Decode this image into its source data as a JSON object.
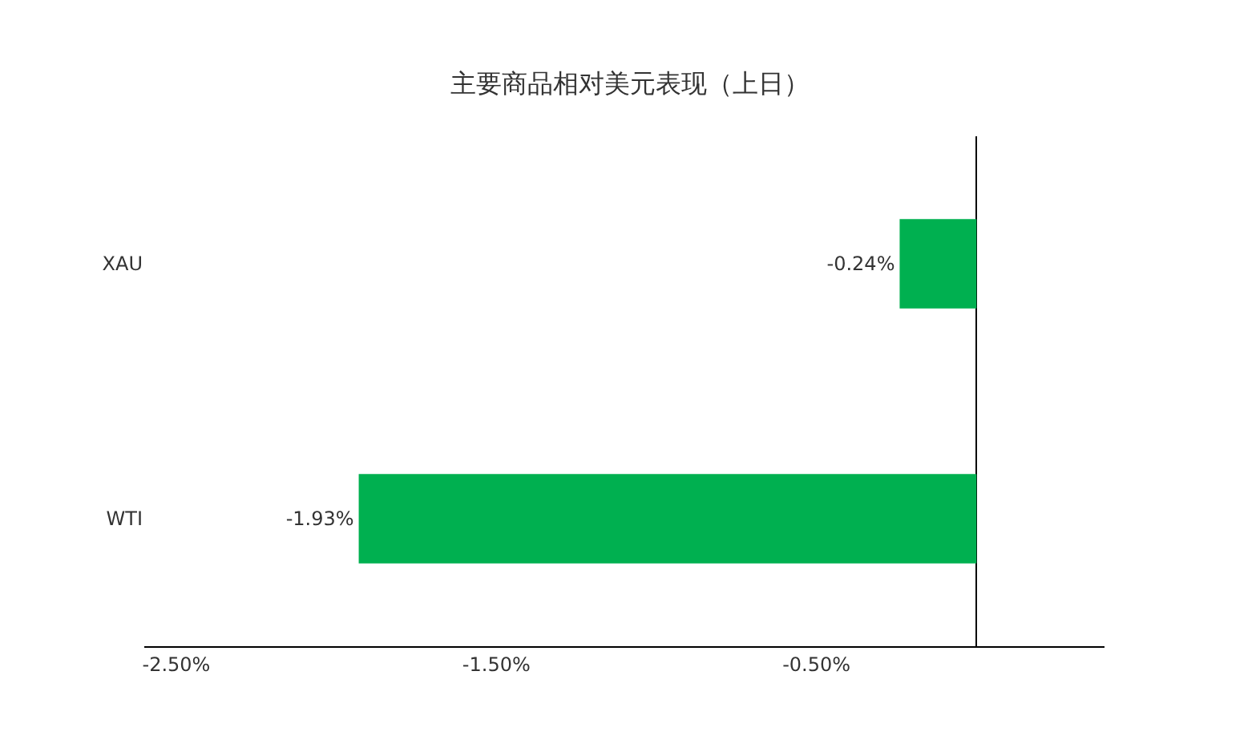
{
  "chart_data": {
    "type": "bar",
    "orientation": "horizontal",
    "title": "主要商品相对美元表现（上日）",
    "categories": [
      "XAU",
      "WTI"
    ],
    "values": [
      -0.24,
      -1.93
    ],
    "value_labels": [
      "-0.24%",
      "-1.93%"
    ],
    "color": "#00b050",
    "xlim": [
      -2.6,
      0.4
    ],
    "xticks": [
      {
        "value": -2.5,
        "label": "-2.50%"
      },
      {
        "value": -1.5,
        "label": "-1.50%"
      },
      {
        "value": -0.5,
        "label": "-0.50%"
      }
    ],
    "grid": false,
    "legend": false
  }
}
